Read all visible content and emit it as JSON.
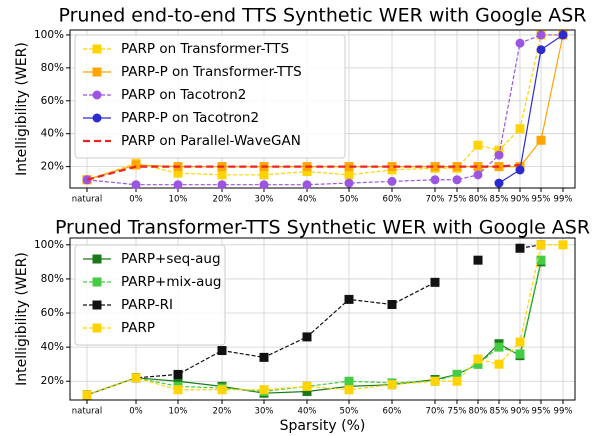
{
  "chart_data": [
    {
      "type": "line",
      "title": "Pruned end-to-end TTS Synthetic WER with Google ASR",
      "y_label": "Intelligibility (WER)",
      "categories": [
        "natural",
        "0%",
        "10%",
        "20%",
        "30%",
        "40%",
        "50%",
        "60%",
        "70%",
        "75%",
        "80%",
        "85%",
        "90%",
        "95%",
        "99%"
      ],
      "ylim": [
        7,
        103
      ],
      "yticks": [
        {
          "value": 20,
          "label": "20%"
        },
        {
          "value": 40,
          "label": "40%"
        },
        {
          "value": 60,
          "label": "60%"
        },
        {
          "value": 80,
          "label": "80%"
        },
        {
          "value": 100,
          "label": "100%"
        }
      ],
      "grid": true,
      "legend": "upper left",
      "series": [
        {
          "name": "PARP on Transformer-TTS",
          "color": "#ffd400",
          "linestyle": "dashed",
          "marker": "square",
          "values": [
            12,
            22,
            16,
            15,
            15,
            17,
            15,
            18,
            19,
            19,
            33,
            30,
            43,
            100,
            100
          ]
        },
        {
          "name": "PARP-P on Transformer-TTS",
          "color": "#ffa500",
          "linestyle": "solid",
          "marker": "square",
          "values": [
            12,
            21,
            20,
            20,
            20,
            20,
            20,
            20,
            20,
            20,
            20,
            20,
            20,
            36,
            100
          ]
        },
        {
          "name": "PARP on Tacotron2",
          "color": "#9b55e0",
          "linestyle": "dashed",
          "marker": "circle",
          "values": [
            12,
            9,
            9,
            9,
            9,
            9,
            10,
            11,
            12,
            12,
            15,
            27,
            95,
            100,
            100
          ]
        },
        {
          "name": "PARP-P on Tacotron2",
          "color": "#2b2bd0",
          "linestyle": "solid",
          "marker": "circle",
          "values": [
            null,
            null,
            null,
            null,
            null,
            null,
            null,
            null,
            null,
            null,
            null,
            10,
            18,
            91,
            100
          ]
        },
        {
          "name": "PARP on Parallel-WaveGAN",
          "color": "#ee2222",
          "linestyle": "dashed",
          "marker": "none",
          "values": [
            12,
            20,
            20,
            20,
            20,
            20,
            20,
            20,
            20,
            20,
            20,
            20,
            21,
            null,
            null
          ]
        }
      ]
    },
    {
      "type": "line",
      "title": "Pruned Transformer-TTS Synthetic WER with Google ASR",
      "y_label": "Intelligibility (WER)",
      "x_label": "Sparsity (%)",
      "categories": [
        "natural",
        "0%",
        "10%",
        "20%",
        "30%",
        "40%",
        "50%",
        "60%",
        "70%",
        "75%",
        "80%",
        "85%",
        "90%",
        "95%",
        "99%"
      ],
      "ylim": [
        9,
        104
      ],
      "yticks": [
        {
          "value": 20,
          "label": "20%"
        },
        {
          "value": 40,
          "label": "40%"
        },
        {
          "value": 60,
          "label": "60%"
        },
        {
          "value": 80,
          "label": "80%"
        },
        {
          "value": 100,
          "label": "100%"
        }
      ],
      "grid": true,
      "legend": "upper left",
      "series": [
        {
          "name": "PARP+seq-aug",
          "color": "#1a7a1a",
          "linestyle": "solid",
          "marker": "square",
          "values": [
            12,
            22,
            20,
            17,
            13,
            14,
            17,
            18,
            21,
            24,
            30,
            42,
            35,
            90,
            null
          ]
        },
        {
          "name": "PARP+mix-aug",
          "color": "#44cc44",
          "linestyle": "dashed",
          "marker": "square",
          "values": [
            12,
            22,
            17,
            16,
            14,
            17,
            20,
            19,
            20,
            24,
            30,
            40,
            36,
            91,
            null
          ]
        },
        {
          "name": "PARP-RI",
          "color": "#111111",
          "linestyle": "dashed",
          "marker": "square",
          "values": [
            12,
            22,
            24,
            38,
            34,
            46,
            68,
            65,
            78,
            null,
            91,
            null,
            98,
            100,
            null
          ]
        },
        {
          "name": "PARP",
          "color": "#ffd400",
          "linestyle": "dashed",
          "marker": "square",
          "values": [
            12,
            22,
            15,
            15,
            15,
            17,
            15,
            18,
            20,
            20,
            33,
            30,
            43,
            100,
            100
          ]
        }
      ]
    }
  ]
}
